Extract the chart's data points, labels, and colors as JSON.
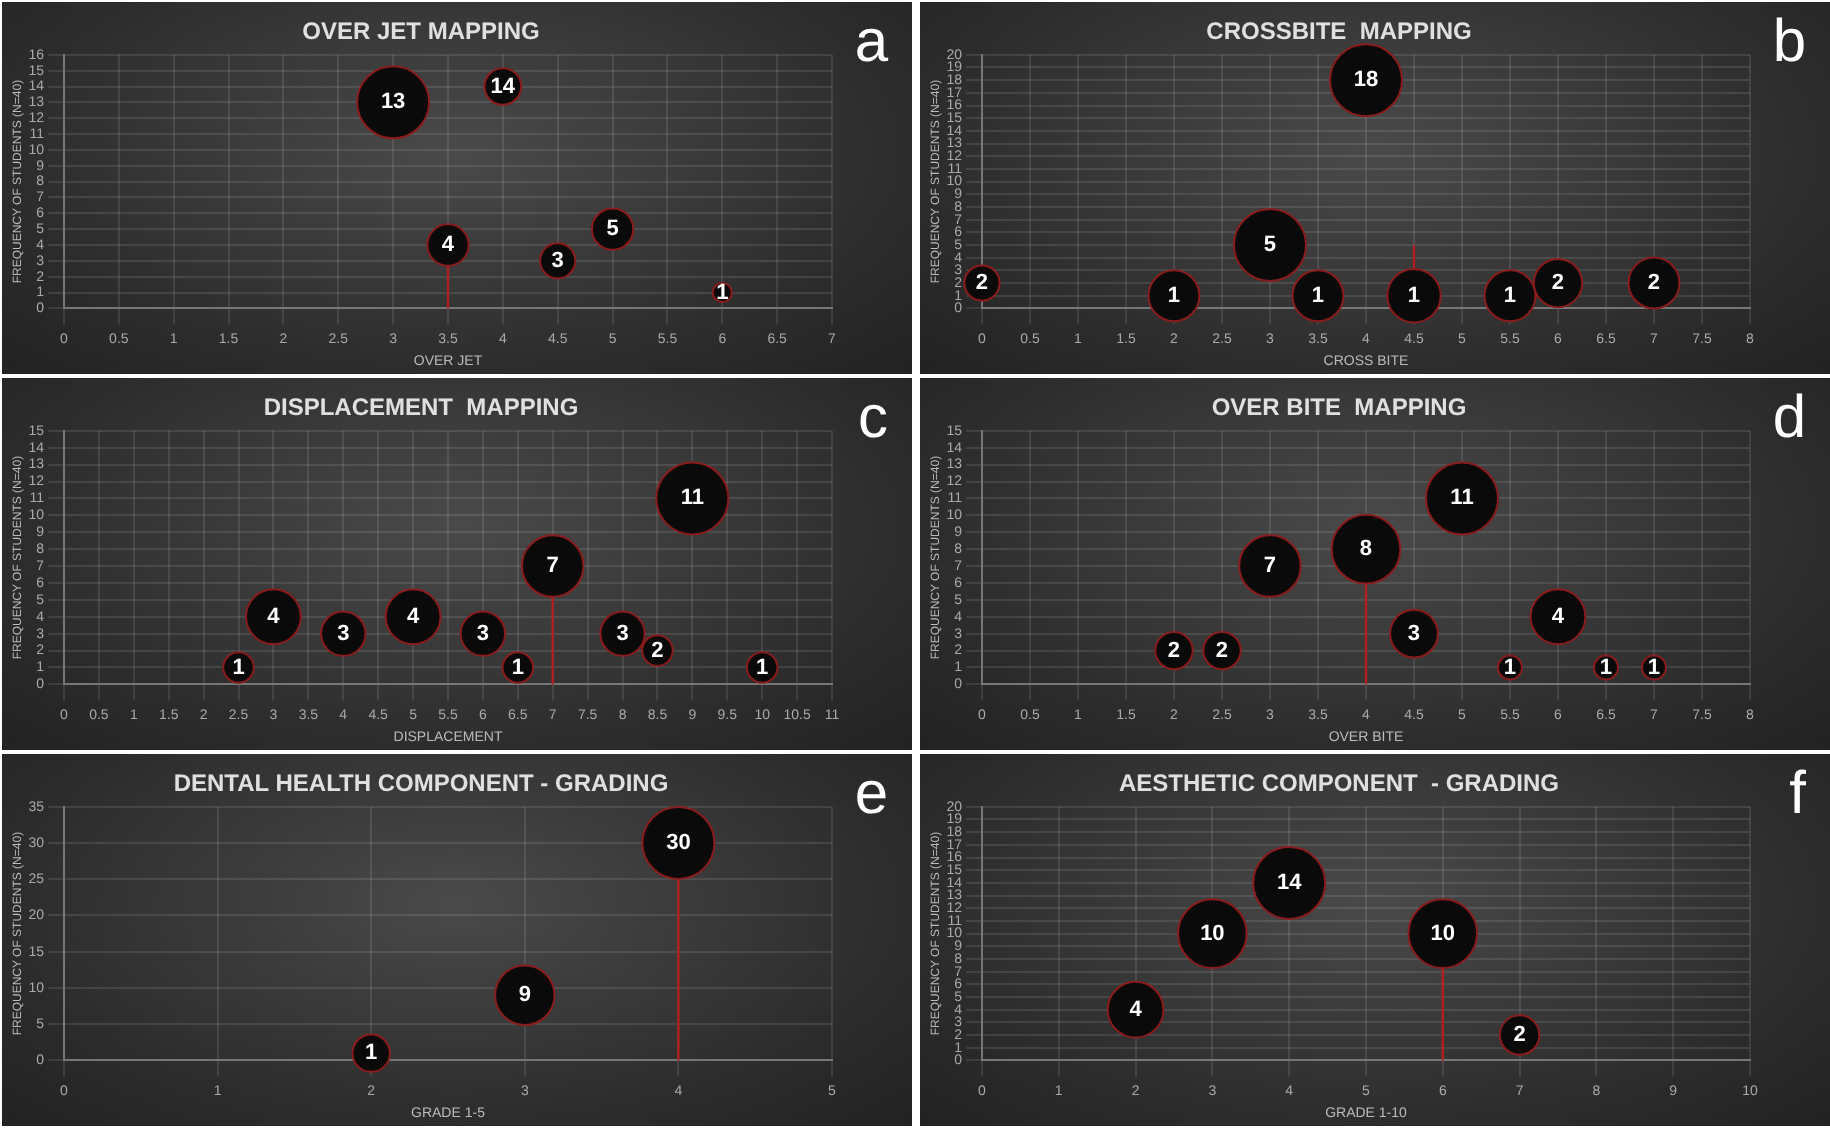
{
  "chart_data": [
    {
      "type": "bubble",
      "title": "OVER JET MAPPING",
      "xlabel": "OVER JET",
      "ylabel": "FREQUENCY OF STUDENTS (N=40)",
      "annotations": [
        "a"
      ],
      "grid": true,
      "data_labels": true,
      "xlim": [
        0,
        7
      ],
      "xticks": [
        0,
        0.5,
        1,
        1.5,
        2,
        2.5,
        3,
        3.5,
        4,
        4.5,
        5,
        5.5,
        6,
        6.5,
        7
      ],
      "ylim": [
        0,
        16
      ],
      "yticks": [
        0,
        1,
        2,
        3,
        4,
        5,
        6,
        7,
        8,
        9,
        10,
        11,
        12,
        13,
        14,
        15,
        16
      ],
      "series": [
        {
          "color": "#0a0a0a",
          "x": [
            3,
            4,
            3.5,
            4.5,
            5,
            6
          ],
          "values": [
            13,
            14,
            4,
            3,
            5,
            1
          ],
          "sizes": [
            1,
            0.26,
            0.33,
            0.24,
            0.33,
            0.07
          ],
          "errors": [
            null,
            null,
            [
              0,
              4
            ],
            null,
            null,
            null
          ]
        }
      ]
    },
    {
      "type": "bubble",
      "title": "CROSSBITE  MAPPING",
      "xlabel": "CROSS BITE",
      "ylabel": "FREQUENCY OF STUDENTS (N=40)",
      "annotations": [
        "b"
      ],
      "grid": true,
      "data_labels": true,
      "xlim": [
        0,
        8
      ],
      "xticks": [
        0,
        0.5,
        1,
        1.5,
        2,
        2.5,
        3,
        3.5,
        4,
        4.5,
        5,
        5.5,
        6,
        6.5,
        7,
        7.5,
        8
      ],
      "ylim": [
        0,
        20
      ],
      "yticks": [
        0,
        1,
        2,
        3,
        4,
        5,
        6,
        7,
        8,
        9,
        10,
        11,
        12,
        13,
        14,
        15,
        16,
        17,
        18,
        19,
        20
      ],
      "series": [
        {
          "color": "#0a0a0a",
          "x": [
            0,
            2,
            3,
            3.5,
            4,
            4.5,
            5.5,
            6,
            7
          ],
          "values": [
            2,
            1,
            5,
            1,
            18,
            1,
            1,
            2,
            2
          ],
          "sizes": [
            0.24,
            0.5,
            1,
            0.5,
            1,
            0.55,
            0.5,
            0.45,
            0.5
          ],
          "errors": [
            null,
            null,
            null,
            null,
            null,
            [
              1,
              5
            ],
            null,
            null,
            null
          ]
        }
      ]
    },
    {
      "type": "bubble",
      "title": "DISPLACEMENT  MAPPING",
      "xlabel": "DISPLACEMENT",
      "ylabel": "FREQUENCY OF STUDENTS (N=40)",
      "annotations": [
        "c"
      ],
      "grid": true,
      "data_labels": true,
      "xlim": [
        0,
        11
      ],
      "xticks": [
        0,
        0.5,
        1,
        1.5,
        2,
        2.5,
        3,
        3.5,
        4,
        4.5,
        5,
        5.5,
        6,
        6.5,
        7,
        7.5,
        8,
        8.5,
        9,
        9.5,
        10,
        10.5,
        11
      ],
      "ylim": [
        0,
        15
      ],
      "yticks": [
        0,
        1,
        2,
        3,
        4,
        5,
        6,
        7,
        8,
        9,
        10,
        11,
        12,
        13,
        14,
        15
      ],
      "series": [
        {
          "color": "#0a0a0a",
          "x": [
            2.5,
            3,
            4,
            5,
            6,
            6.5,
            7,
            8,
            8.5,
            9,
            10
          ],
          "values": [
            1,
            4,
            3,
            4,
            3,
            1,
            7,
            3,
            2,
            11,
            1
          ],
          "sizes": [
            0.18,
            0.58,
            0.38,
            0.58,
            0.38,
            0.18,
            0.73,
            0.38,
            0.18,
            1,
            0.18
          ],
          "errors": [
            null,
            null,
            null,
            null,
            null,
            null,
            [
              0,
              7
            ],
            null,
            null,
            null,
            null
          ]
        }
      ]
    },
    {
      "type": "bubble",
      "title": "OVER BITE  MAPPING",
      "xlabel": "OVER BITE",
      "ylabel": "FREQUENCY OF STUDENTS (N=40)",
      "annotations": [
        "d"
      ],
      "grid": true,
      "data_labels": true,
      "xlim": [
        0,
        8
      ],
      "xticks": [
        0,
        0.5,
        1,
        1.5,
        2,
        2.5,
        3,
        3.5,
        4,
        4.5,
        5,
        5.5,
        6,
        6.5,
        7,
        7.5,
        8
      ],
      "ylim": [
        0,
        15
      ],
      "yticks": [
        0,
        1,
        2,
        3,
        4,
        5,
        6,
        7,
        8,
        9,
        10,
        11,
        12,
        13,
        14,
        15
      ],
      "series": [
        {
          "color": "#0a0a0a",
          "x": [
            2,
            2.5,
            3,
            4,
            4.5,
            5,
            5.5,
            6,
            6.5,
            7
          ],
          "values": [
            2,
            2,
            7,
            8,
            3,
            11,
            1,
            4,
            1,
            1
          ],
          "sizes": [
            0.27,
            0.27,
            0.73,
            0.91,
            0.44,
            1,
            0.11,
            0.58,
            0.11,
            0.11
          ],
          "errors": [
            null,
            null,
            null,
            [
              0,
              8
            ],
            null,
            null,
            null,
            null,
            null,
            null
          ]
        }
      ]
    },
    {
      "type": "bubble",
      "title": "DENTAL HEALTH COMPONENT - GRADING",
      "xlabel": "GRADE 1-5",
      "ylabel": "FREQUENCY OF STUDENTS (N=40)",
      "annotations": [
        "e"
      ],
      "grid": true,
      "data_labels": true,
      "xlim": [
        0,
        5
      ],
      "xticks": [
        0,
        1,
        2,
        3,
        4,
        5
      ],
      "ylim": [
        0,
        35
      ],
      "yticks": [
        0,
        5,
        10,
        15,
        20,
        25,
        30,
        35
      ],
      "series": [
        {
          "color": "#0a0a0a",
          "x": [
            2,
            3,
            4
          ],
          "values": [
            1,
            9,
            30
          ],
          "sizes": [
            0.27,
            0.68,
            1
          ],
          "errors": [
            null,
            null,
            [
              0,
              30
            ]
          ]
        }
      ]
    },
    {
      "type": "bubble",
      "title": "AESTHETIC COMPONENT  - GRADING",
      "xlabel": "GRADE 1-10",
      "ylabel": "FREQUENCY OF STUDENTS (N=40)",
      "annotations": [
        "f"
      ],
      "grid": true,
      "data_labels": true,
      "xlim": [
        0,
        10
      ],
      "xticks": [
        0,
        1,
        2,
        3,
        4,
        5,
        6,
        7,
        8,
        9,
        10
      ],
      "ylim": [
        0,
        20
      ],
      "yticks": [
        0,
        1,
        2,
        3,
        4,
        5,
        6,
        7,
        8,
        9,
        10,
        11,
        12,
        13,
        14,
        15,
        16,
        17,
        18,
        19,
        20
      ],
      "series": [
        {
          "color": "#0a0a0a",
          "x": [
            2,
            3,
            4,
            6,
            7
          ],
          "values": [
            4,
            10,
            14,
            10,
            2
          ],
          "sizes": [
            0.6,
            0.91,
            1,
            0.91,
            0.3
          ],
          "errors": [
            null,
            null,
            null,
            [
              0,
              10
            ],
            null
          ]
        }
      ]
    }
  ]
}
